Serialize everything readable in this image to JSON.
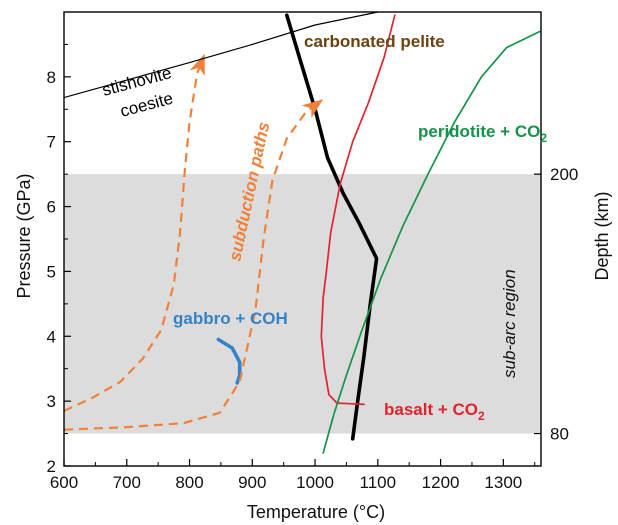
{
  "chart_data": {
    "type": "line",
    "xlabel": "Temperature (°C)",
    "ylabel": "Pressure (GPa)",
    "ylabel_right": "Depth (km)",
    "xlim": [
      600,
      1360
    ],
    "ylim": [
      2,
      9
    ],
    "x_ticks": [
      600,
      700,
      800,
      900,
      1000,
      1100,
      1200,
      1300
    ],
    "y_ticks": [
      2,
      3,
      4,
      5,
      6,
      7,
      8
    ],
    "right_ticks": [
      {
        "pressure": 2.5,
        "label": "80"
      },
      {
        "pressure": 6.5,
        "label": "200"
      }
    ],
    "grid": false,
    "shaded_band": {
      "label": "sub-arc region",
      "pressure_range": [
        2.5,
        6.5
      ],
      "color": "#dcdcdc"
    },
    "series": [
      {
        "name": "carbonated pelite",
        "label_text": "carbonated pelite",
        "color": "#000000",
        "style": "solid-thick",
        "points": [
          [
            955,
            8.95
          ],
          [
            975,
            8.3
          ],
          [
            1000,
            7.5
          ],
          [
            1020,
            6.75
          ],
          [
            1045,
            6.2
          ],
          [
            1070,
            5.75
          ],
          [
            1098,
            5.2
          ],
          [
            1088,
            4.5
          ],
          [
            1078,
            3.7
          ],
          [
            1068,
            3.0
          ],
          [
            1060,
            2.42
          ]
        ]
      },
      {
        "name": "basalt + CO2",
        "label_text": "basalt + CO",
        "label_sub": "2",
        "color": "#e0242e",
        "style": "solid",
        "points": [
          [
            1127,
            8.95
          ],
          [
            1110,
            8.3
          ],
          [
            1085,
            7.6
          ],
          [
            1060,
            7.0
          ],
          [
            1040,
            6.35
          ],
          [
            1025,
            5.6
          ],
          [
            1018,
            5.0
          ],
          [
            1013,
            4.6
          ],
          [
            1010,
            4.0
          ],
          [
            1015,
            3.5
          ],
          [
            1022,
            3.1
          ],
          [
            1035,
            2.97
          ],
          [
            1055,
            2.96
          ],
          [
            1078,
            2.95
          ]
        ]
      },
      {
        "name": "peridotite + CO2",
        "label_text": "peridotite + CO",
        "label_sub": "2",
        "color": "#16924a",
        "style": "solid",
        "points": [
          [
            1013,
            2.2
          ],
          [
            1030,
            2.8
          ],
          [
            1050,
            3.4
          ],
          [
            1075,
            4.1
          ],
          [
            1105,
            4.9
          ],
          [
            1140,
            5.7
          ],
          [
            1180,
            6.5
          ],
          [
            1222,
            7.3
          ],
          [
            1265,
            8.0
          ],
          [
            1305,
            8.45
          ],
          [
            1358,
            8.7
          ]
        ]
      },
      {
        "name": "gabbro + COH",
        "label_text": "gabbro + COH",
        "color": "#3582c9",
        "style": "solid-thick",
        "points": [
          [
            846,
            3.95
          ],
          [
            868,
            3.82
          ],
          [
            880,
            3.6
          ],
          [
            880,
            3.4
          ],
          [
            876,
            3.28
          ]
        ]
      },
      {
        "name": "subduction path 1",
        "color": "#f0813a",
        "style": "dashed-arrow",
        "points": [
          [
            600,
            2.85
          ],
          [
            645,
            3.05
          ],
          [
            690,
            3.3
          ],
          [
            725,
            3.65
          ],
          [
            755,
            4.1
          ],
          [
            775,
            4.8
          ],
          [
            785,
            5.6
          ],
          [
            792,
            6.5
          ],
          [
            800,
            7.3
          ],
          [
            812,
            8.05
          ],
          [
            822,
            8.3
          ]
        ]
      },
      {
        "name": "subduction path 2",
        "color": "#f0813a",
        "style": "dashed-arrow",
        "points": [
          [
            600,
            2.56
          ],
          [
            700,
            2.6
          ],
          [
            790,
            2.66
          ],
          [
            848,
            2.82
          ],
          [
            880,
            3.3
          ],
          [
            905,
            4.4
          ],
          [
            918,
            5.5
          ],
          [
            932,
            6.4
          ],
          [
            955,
            7.05
          ],
          [
            985,
            7.45
          ],
          [
            1008,
            7.62
          ]
        ]
      },
      {
        "name": "stishovite-coesite boundary",
        "color": "#000000",
        "style": "thin",
        "points": [
          [
            600,
            7.68
          ],
          [
            700,
            7.95
          ],
          [
            800,
            8.22
          ],
          [
            900,
            8.5
          ],
          [
            1000,
            8.8
          ],
          [
            1100,
            9.0
          ]
        ]
      }
    ],
    "annotations": [
      {
        "text": "stishovite",
        "color": "#000000"
      },
      {
        "text": "coesite",
        "color": "#000000"
      },
      {
        "text": "subduction paths",
        "color": "#f0813a"
      },
      {
        "text": "sub-arc region",
        "color": "#111111"
      }
    ]
  }
}
